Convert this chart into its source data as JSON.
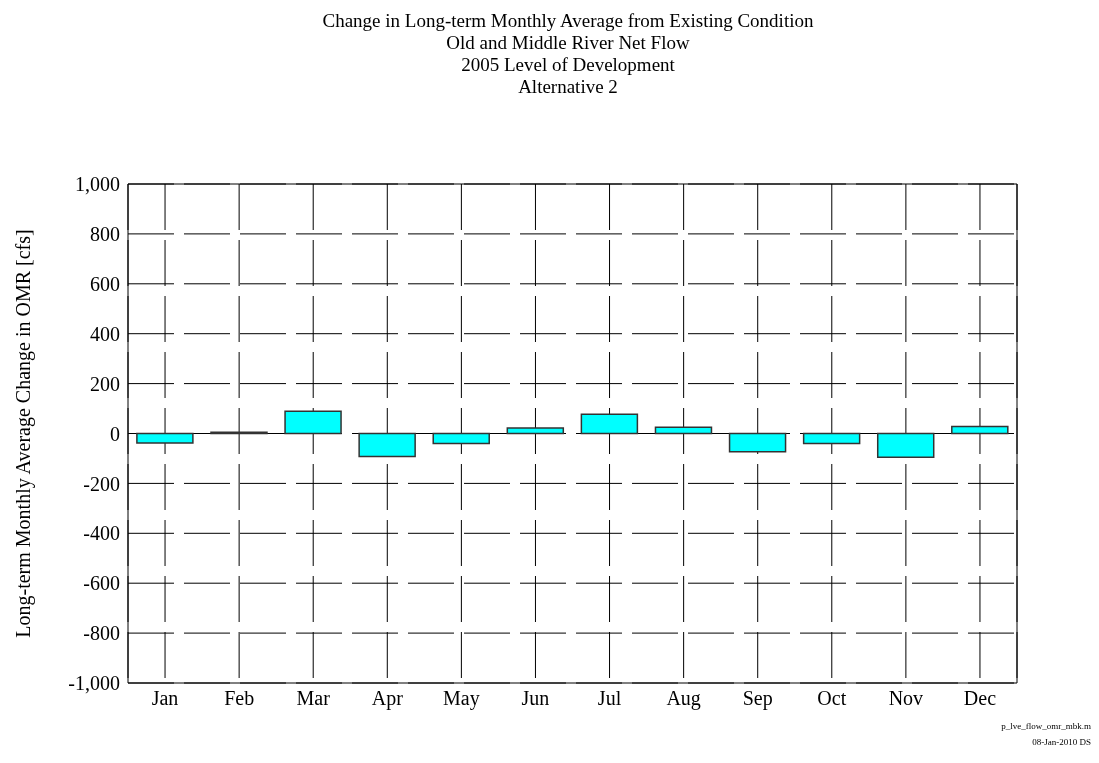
{
  "chart_data": {
    "type": "bar",
    "title": "Change in Long-term Monthly Average from Existing Condition\nOld and Middle River Net Flow\n2005 Level of Development\nAlternative 2",
    "ylabel": "Long-term Monthly Average Change in OMR [cfs]",
    "categories": [
      "Jan",
      "Feb",
      "Mar",
      "Apr",
      "May",
      "Jun",
      "Jul",
      "Aug",
      "Sep",
      "Oct",
      "Nov",
      "Dec"
    ],
    "values": [
      -38,
      5,
      89,
      -92,
      -40,
      22,
      77,
      25,
      -73,
      -40,
      -95,
      28
    ],
    "color": "#00ffff",
    "ylim": [
      -1000,
      1000
    ],
    "yticks": [
      {
        "value": -1000,
        "label": "-1,000"
      },
      -800,
      -600,
      -400,
      -200,
      0,
      200,
      400,
      600,
      800,
      {
        "value": 1000,
        "label": "1,000"
      }
    ],
    "grid": true,
    "annotations": [
      "p_lve_flow_omr_mbk.m",
      "08-Jan-2010 DS"
    ]
  }
}
